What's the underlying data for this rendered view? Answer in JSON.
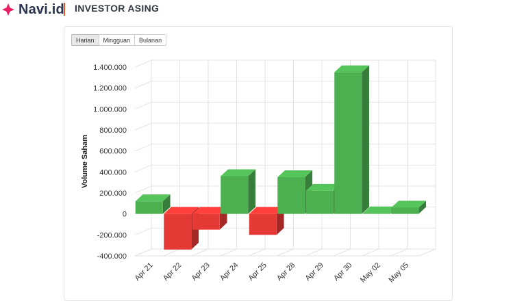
{
  "header": {
    "logo_text": "Navi.id",
    "title": "INVESTOR ASING"
  },
  "tabs": [
    {
      "label": "Harian",
      "active": true
    },
    {
      "label": "Mingguan",
      "active": false
    },
    {
      "label": "Bulanan",
      "active": false
    }
  ],
  "colors": {
    "positive": "#4caf50",
    "negative": "#e53935",
    "accent": "#e8552d"
  },
  "chart_data": {
    "type": "bar",
    "ylabel": "Volume Saham",
    "xlabel": "",
    "ylim": [
      -400000,
      1400000
    ],
    "yticks": [
      "1.400.000",
      "1.200.000",
      "1.000.000",
      "800.000",
      "600.000",
      "400.000",
      "200.000",
      "0",
      "-200.000",
      "-400.000"
    ],
    "categories": [
      "Apr 21",
      "Apr 22",
      "Apr 23",
      "Apr 24",
      "Apr 25",
      "Apr 28",
      "Apr 29",
      "Apr 30",
      "May 02",
      "May 05"
    ],
    "values": [
      120000,
      -340000,
      -150000,
      360000,
      -200000,
      350000,
      220000,
      1350000,
      5000,
      60000
    ],
    "grid": true,
    "style": "3d"
  }
}
